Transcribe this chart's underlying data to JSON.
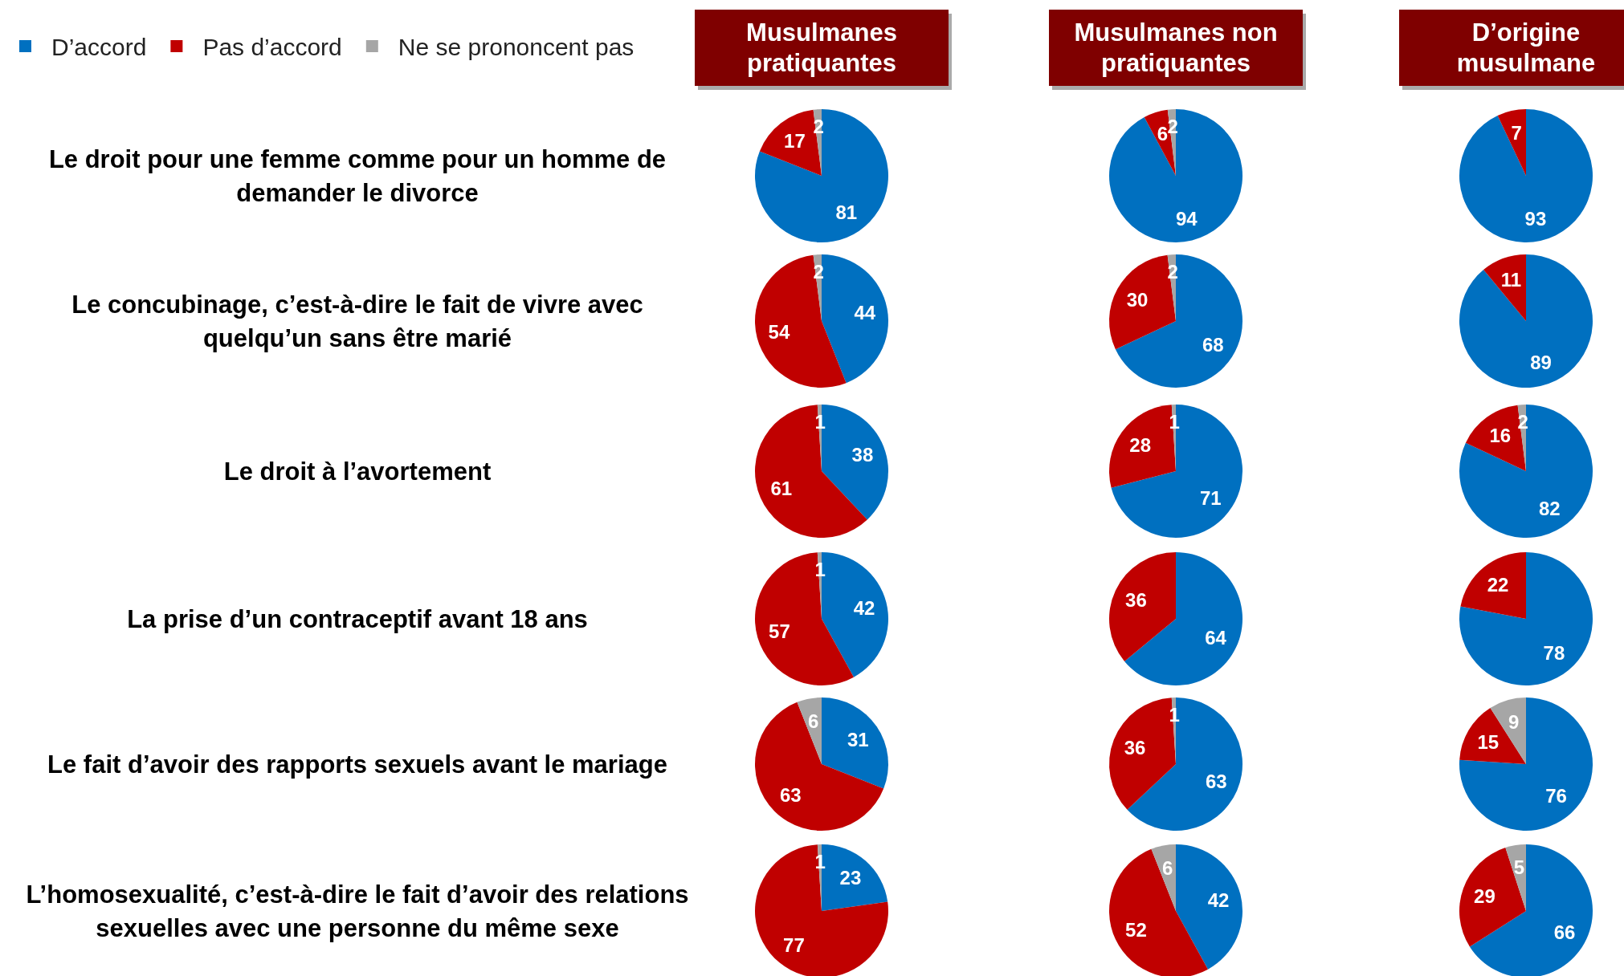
{
  "chart_data": [
    {
      "type": "pie",
      "title": "Musulmanes pratiquantes",
      "ylabel": "Le droit pour une femme comme pour un homme de demander le divorce",
      "legend": "top left",
      "categories": [
        "D’accord",
        "Pas d’accord",
        "Ne se prononcent pas"
      ],
      "values": [
        81,
        17,
        2
      ],
      "colors": [
        "#0070c0",
        "#c00000",
        "#a6a6a6"
      ],
      "data_labels": true
    },
    {
      "type": "pie",
      "title": "Musulmanes non pratiquantes",
      "categories": [
        null,
        null,
        null
      ],
      "values": [
        94,
        6,
        2
      ],
      "colors": [
        "#0070c0",
        "#c00000",
        "#a6a6a6"
      ],
      "data_labels": true
    },
    {
      "type": "pie",
      "title": "D’origine musulmane",
      "categories": [
        null,
        null
      ],
      "values": [
        93,
        7
      ],
      "colors": [
        "#0070c0",
        "#c00000"
      ],
      "data_labels": true
    },
    {
      "type": "pie",
      "ylabel": "Le concubinage, c’est-à-dire le fait de vivre avec quelqu’un sans être marié",
      "categories": [
        null,
        null,
        null
      ],
      "values": [
        44,
        54,
        2
      ],
      "colors": [
        "#0070c0",
        "#c00000",
        "#a6a6a6"
      ],
      "data_labels": true
    },
    {
      "type": "pie",
      "categories": [
        null,
        null,
        null
      ],
      "values": [
        68,
        30,
        2
      ],
      "colors": [
        "#0070c0",
        "#c00000",
        "#a6a6a6"
      ],
      "data_labels": true
    },
    {
      "type": "pie",
      "categories": [
        null,
        null
      ],
      "values": [
        89,
        11
      ],
      "colors": [
        "#0070c0",
        "#c00000"
      ],
      "data_labels": true
    },
    {
      "type": "pie",
      "ylabel": "Le droit à l’avortement",
      "categories": [
        null,
        null,
        null
      ],
      "values": [
        38,
        61,
        1
      ],
      "colors": [
        "#0070c0",
        "#c00000",
        "#a6a6a6"
      ],
      "data_labels": true
    },
    {
      "type": "pie",
      "categories": [
        null,
        null,
        null
      ],
      "values": [
        71,
        28,
        1
      ],
      "colors": [
        "#0070c0",
        "#c00000",
        "#a6a6a6"
      ],
      "data_labels": true
    },
    {
      "type": "pie",
      "categories": [
        null,
        null,
        null
      ],
      "values": [
        82,
        16,
        2
      ],
      "colors": [
        "#0070c0",
        "#c00000",
        "#a6a6a6"
      ],
      "data_labels": true
    },
    {
      "type": "pie",
      "ylabel": "La prise d’un contraceptif avant 18 ans",
      "categories": [
        null,
        null,
        null
      ],
      "values": [
        42,
        57,
        1
      ],
      "colors": [
        "#0070c0",
        "#c00000",
        "#a6a6a6"
      ],
      "data_labels": true
    },
    {
      "type": "pie",
      "categories": [
        null,
        null
      ],
      "values": [
        64,
        36
      ],
      "colors": [
        "#0070c0",
        "#c00000"
      ],
      "data_labels": true
    },
    {
      "type": "pie",
      "categories": [
        null,
        null
      ],
      "values": [
        78,
        22
      ],
      "colors": [
        "#0070c0",
        "#c00000"
      ],
      "data_labels": true
    },
    {
      "type": "pie",
      "ylabel": "Le fait d’avoir des rapports sexuels avant le mariage",
      "categories": [
        null,
        null,
        null
      ],
      "values": [
        31,
        63,
        6
      ],
      "colors": [
        "#0070c0",
        "#c00000",
        "#a6a6a6"
      ],
      "data_labels": true
    },
    {
      "type": "pie",
      "categories": [
        null,
        null,
        null
      ],
      "values": [
        63,
        36,
        1
      ],
      "colors": [
        "#0070c0",
        "#c00000",
        "#a6a6a6"
      ],
      "data_labels": true
    },
    {
      "type": "pie",
      "categories": [
        null,
        null,
        null
      ],
      "values": [
        76,
        15,
        9
      ],
      "colors": [
        "#0070c0",
        "#c00000",
        "#a6a6a6"
      ],
      "data_labels": true
    },
    {
      "type": "pie",
      "ylabel": "L’homosexualité, c’est-à-dire le fait d’avoir des relations sexuelles avec une personne du même sexe",
      "categories": [
        null,
        null,
        null
      ],
      "values": [
        23,
        77,
        1
      ],
      "colors": [
        "#0070c0",
        "#c00000",
        "#a6a6a6"
      ],
      "data_labels": true
    },
    {
      "type": "pie",
      "categories": [
        null,
        null,
        null
      ],
      "values": [
        42,
        52,
        6
      ],
      "colors": [
        "#0070c0",
        "#c00000",
        "#a6a6a6"
      ],
      "data_labels": true
    },
    {
      "type": "pie",
      "categories": [
        null,
        null,
        null
      ],
      "values": [
        66,
        29,
        5
      ],
      "colors": [
        "#0070c0",
        "#c00000",
        "#a6a6a6"
      ],
      "data_labels": true
    }
  ]
}
